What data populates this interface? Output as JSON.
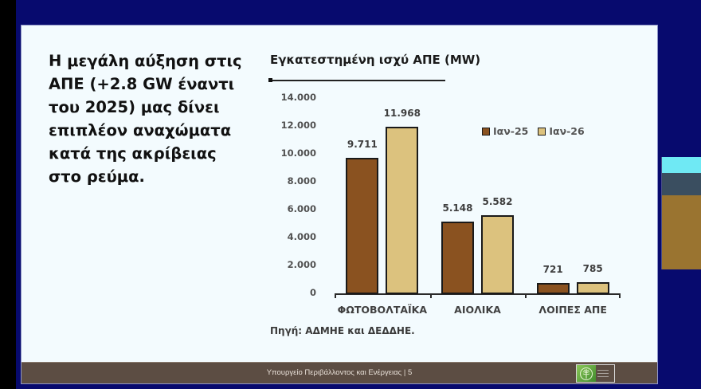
{
  "slide": {
    "headline": "Η μεγάλη αύξηση στις\nΑΠΕ (+2.8 GW έναντι\nτου 2025) μας δίνει\nεπιπλέον αναχώματα\nκατά της ακρίβειας\nστο ρεύμα.",
    "source": "Πηγή: ΑΔΜΗΕ και ΔΕΔΔΗΕ.",
    "footer": {
      "text": "Υπουργείο Περιβάλλοντος και Ενέργειας | 5",
      "page_number": "5"
    }
  },
  "colors": {
    "background": "#070a6e",
    "slide": "#f3fbfe",
    "series_1": "#8a5220",
    "series_2": "#dcc27e",
    "footer": "#5c4d43"
  },
  "chart_data": {
    "type": "bar",
    "title": "Εγκατεστημένη ισχύ ΑΠΕ (MW)",
    "xlabel": "",
    "ylabel": "",
    "ylim": [
      0,
      14000
    ],
    "yticks": [
      "0",
      "2.000",
      "4.000",
      "6.000",
      "8.000",
      "10.000",
      "12.000",
      "14.000"
    ],
    "grid": false,
    "legend_position": "top-right",
    "categories": [
      "ΦΩΤΟΒΟΛΤΑΪΚΑ",
      "ΑΙΟΛΙΚΑ",
      "ΛΟΙΠΕΣ ΑΠΕ"
    ],
    "series": [
      {
        "name": "Ιαν-25",
        "values": [
          9711,
          5148,
          721
        ],
        "labels": [
          "9.711",
          "5.148",
          "721"
        ],
        "color": "#8a5220"
      },
      {
        "name": "Ιαν-26",
        "values": [
          11968,
          5582,
          785
        ],
        "labels": [
          "11.968",
          "5.582",
          "785"
        ],
        "color": "#dcc27e"
      }
    ]
  }
}
